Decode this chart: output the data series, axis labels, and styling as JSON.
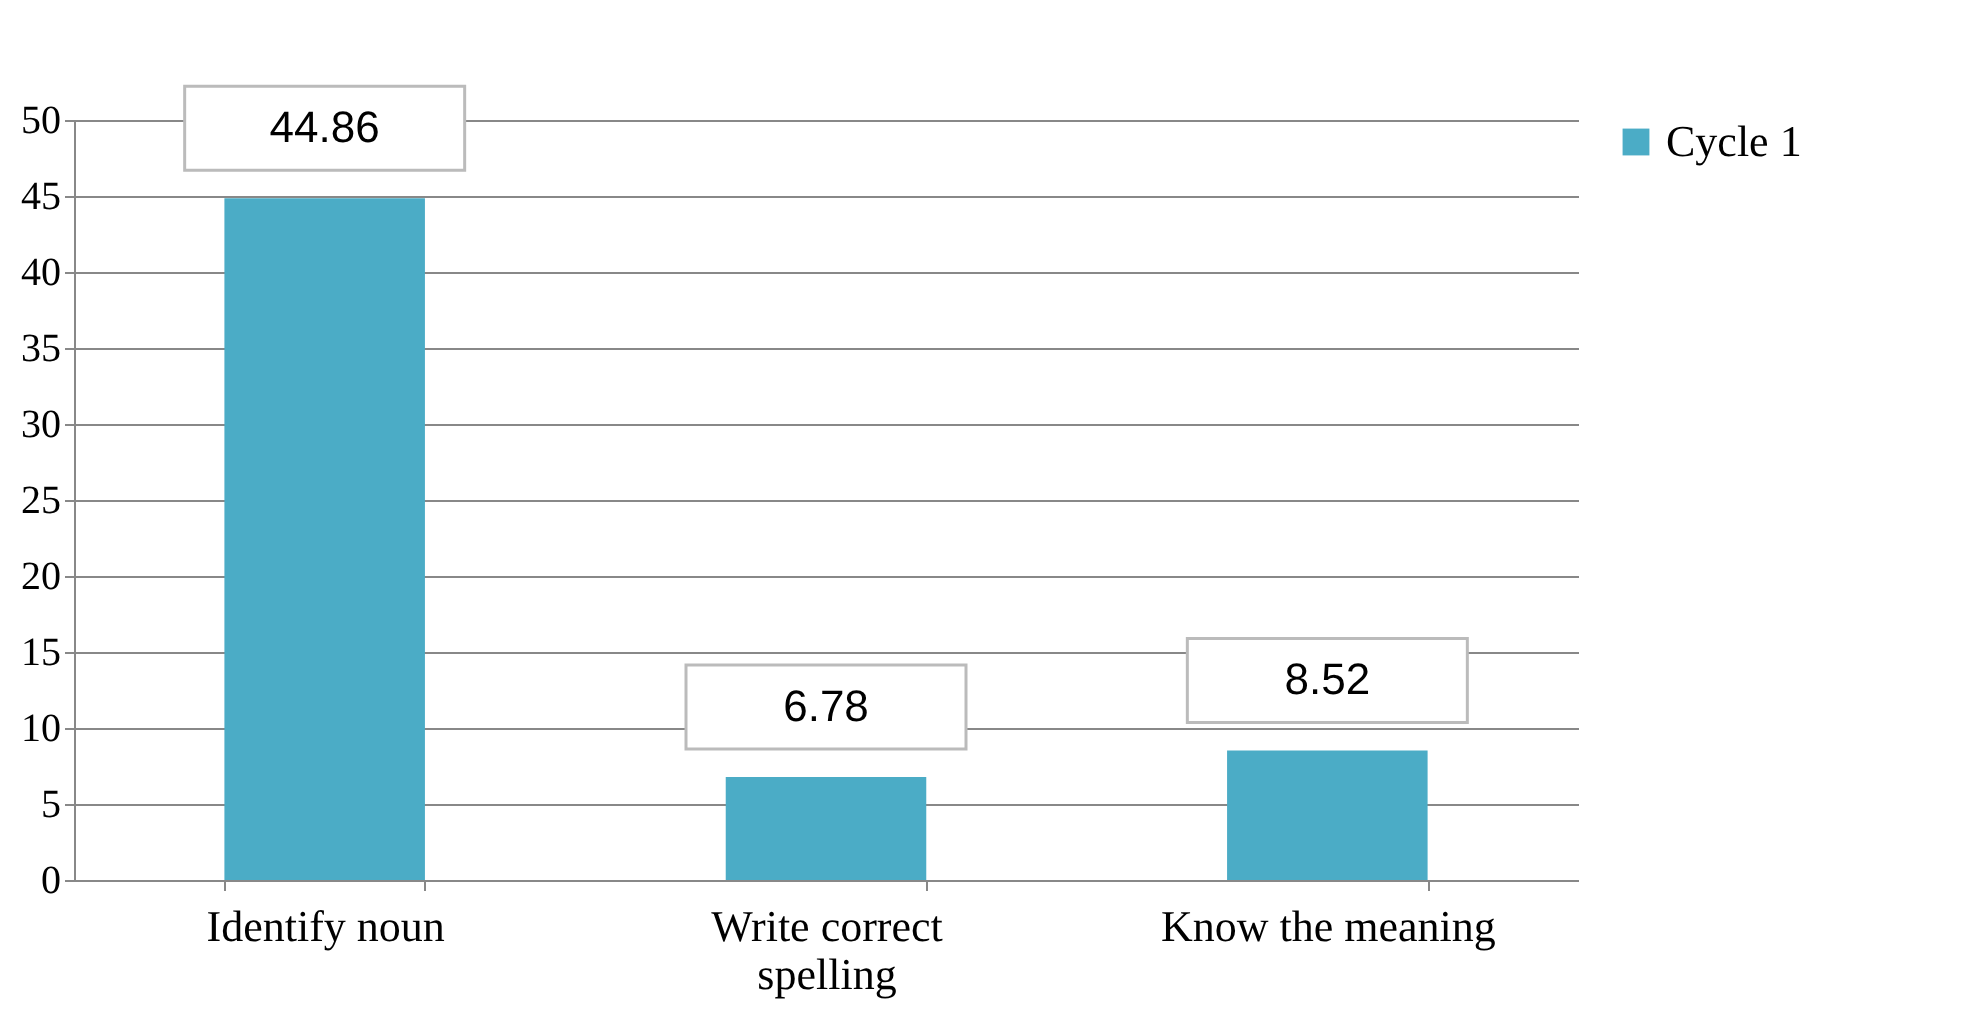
{
  "chart_data": {
    "type": "bar",
    "categories": [
      "Identify noun",
      "Write correct spelling",
      "Know the meaning"
    ],
    "series": [
      {
        "name": "Cycle 1",
        "color": "#4bacc6",
        "values": [
          44.86,
          6.78,
          8.52
        ]
      }
    ],
    "ylim": [
      0,
      50
    ],
    "yticks": [
      0,
      5,
      10,
      15,
      20,
      25,
      30,
      35,
      40,
      45,
      50
    ],
    "grid": "y",
    "legend": "right",
    "data_labels": true
  }
}
